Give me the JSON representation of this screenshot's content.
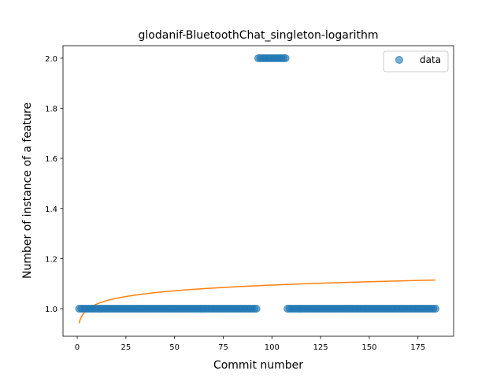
{
  "chart_data": {
    "type": "scatter",
    "title": "glodanif-BluetoothChat_singleton-logarithm",
    "xlabel": "Commit number",
    "ylabel": "Number of instance of a feature",
    "xlim": [
      -7.3,
      193.3
    ],
    "ylim": [
      0.89,
      2.05
    ],
    "xticks": [
      0,
      25,
      50,
      75,
      100,
      125,
      150,
      175
    ],
    "yticks": [
      1.0,
      1.2,
      1.4,
      1.6,
      1.8,
      2.0
    ],
    "ytick_labels": [
      "1.0",
      "1.2",
      "1.4",
      "1.6",
      "1.8",
      "2.0"
    ],
    "grid": false,
    "legend": {
      "position": "top-right",
      "entries": [
        "data"
      ]
    },
    "series": [
      {
        "name": "data",
        "kind": "scatter",
        "color": "#1f77b4",
        "segments": [
          {
            "x_start": 1,
            "x_end": 92,
            "y": 1.0
          },
          {
            "x_start": 93,
            "x_end": 107,
            "y": 2.0
          },
          {
            "x_start": 108,
            "x_end": 184,
            "y": 1.0
          }
        ]
      },
      {
        "kind": "line",
        "color": "#ff7f0e",
        "fit": {
          "model": "logarithm",
          "a": 0.9423,
          "b": 0.033
        },
        "x_range": [
          1,
          184
        ]
      }
    ]
  }
}
